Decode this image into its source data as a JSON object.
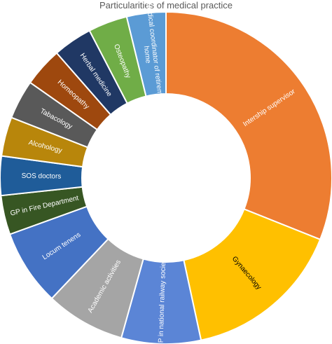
{
  "chart_data": {
    "type": "pie",
    "donut": true,
    "title": "Particularities of medical practice",
    "legend": "none",
    "slices": [
      {
        "label": "Intership supervisor",
        "value": 29.3,
        "color": "#ED7D31",
        "label_color": "#ffffff"
      },
      {
        "label": "Gynaecology",
        "value": 14.7,
        "color": "#FFC000",
        "label_color": "#000000"
      },
      {
        "label": "GP in national railway society",
        "value": 7.3,
        "color": "#5B85D6",
        "label_color": "#ffffff"
      },
      {
        "label": "Academic activities",
        "value": 7.3,
        "color": "#A5A5A5",
        "label_color": "#ffffff"
      },
      {
        "label": "Locum tenens",
        "value": 7.0,
        "color": "#4472C4",
        "label_color": "#ffffff"
      },
      {
        "label": "GP in Fire Department",
        "value": 3.6,
        "color": "#375623",
        "label_color": "#ffffff"
      },
      {
        "label": "SOS doctors",
        "value": 3.6,
        "color": "#1F5C99",
        "label_color": "#ffffff"
      },
      {
        "label": "Alcohology",
        "value": 3.6,
        "color": "#B8860B",
        "label_color": "#ffffff"
      },
      {
        "label": "Tabacology",
        "value": 3.6,
        "color": "#595959",
        "label_color": "#ffffff"
      },
      {
        "label": "Homeopathy",
        "value": 3.6,
        "color": "#9E480E",
        "label_color": "#ffffff"
      },
      {
        "label": "Herbal medicine",
        "value": 3.6,
        "color": "#203864",
        "label_color": "#ffffff"
      },
      {
        "label": "Osteopathy",
        "value": 3.6,
        "color": "#70AD47",
        "label_color": "#ffffff"
      },
      {
        "label": "Medical coordinator of retirement home",
        "value": 3.6,
        "color": "#5B9BD5",
        "label_color": "#ffffff"
      }
    ]
  }
}
